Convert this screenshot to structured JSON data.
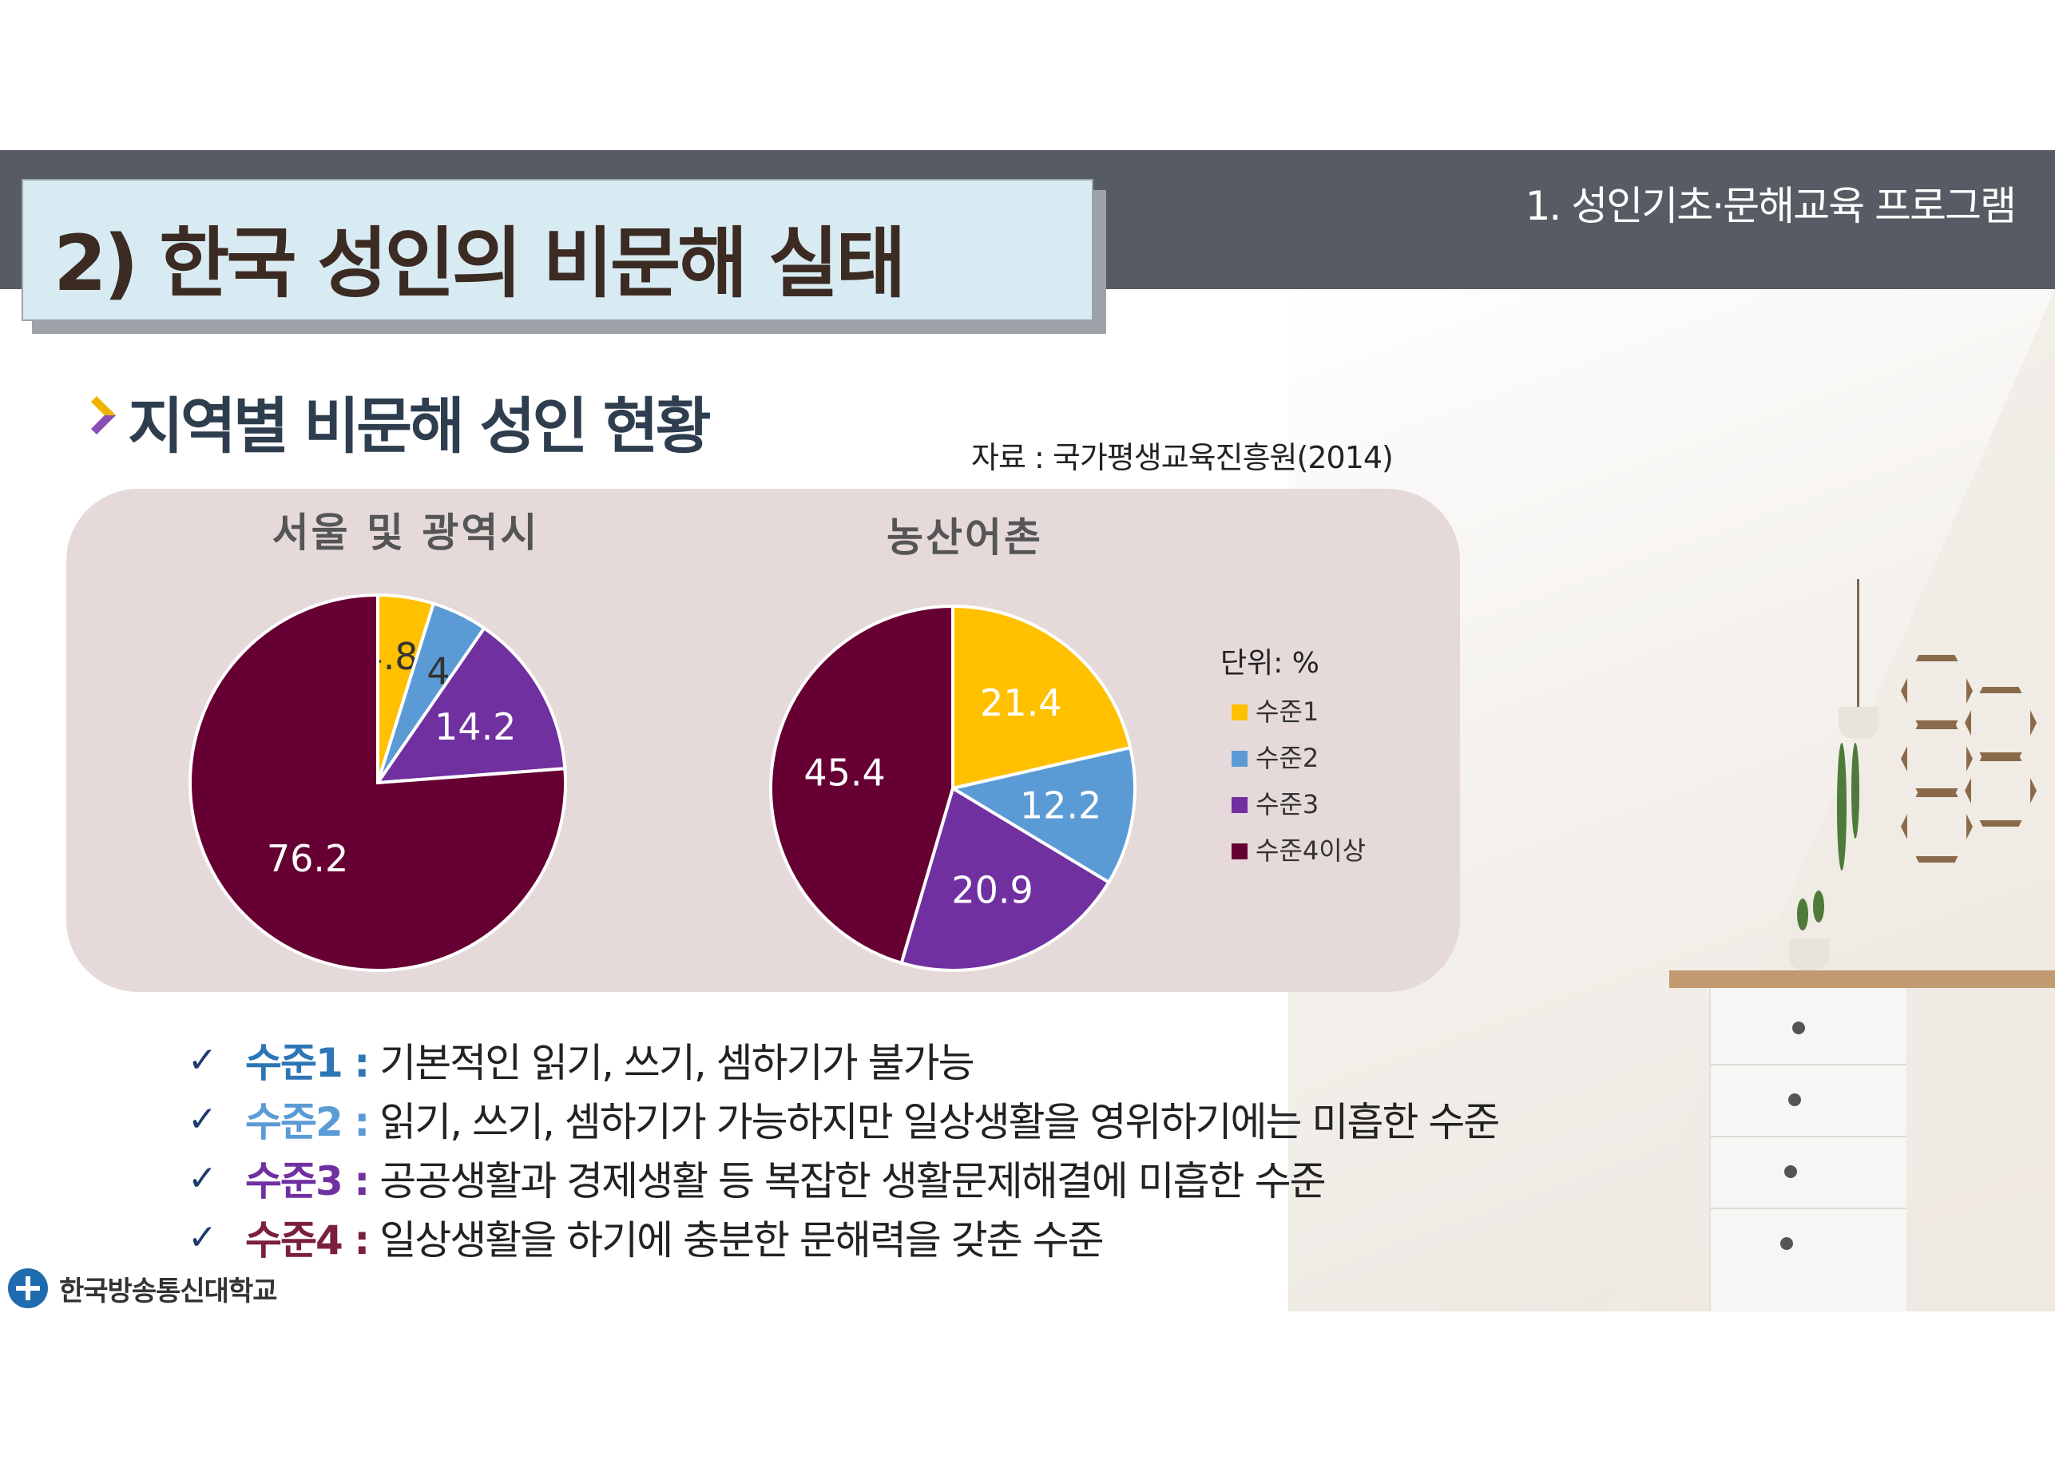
{
  "header": {
    "section_label": "1. 성인기초·문해교육 프로그램",
    "title": "2) 한국 성인의 비문해 실태"
  },
  "subheading": "지역별 비문해 성인 현황",
  "source": "자료 : 국가평생교육진흥원(2014)",
  "colors": {
    "level1": "#ffc000",
    "level2": "#5b9bd5",
    "level3": "#7030a0",
    "level4": "#660033"
  },
  "chart_data": [
    {
      "type": "pie",
      "title": "서울 및 광역시",
      "categories": [
        "수준1",
        "수준2",
        "수준3",
        "수준4이상"
      ],
      "values": [
        4.8,
        4.8,
        14.2,
        76.2
      ],
      "labels": [
        "4.8",
        "4.8",
        "14.2",
        "76.2"
      ]
    },
    {
      "type": "pie",
      "title": "농산어촌",
      "categories": [
        "수준1",
        "수준2",
        "수준3",
        "수준4이상"
      ],
      "values": [
        21.4,
        12.2,
        20.9,
        45.4
      ],
      "labels": [
        "21.4",
        "12.2",
        "20.9",
        "45.4"
      ]
    }
  ],
  "legend": {
    "unit": "단위: %",
    "entries": [
      "수준1",
      "수준2",
      "수준3",
      "수준4이상"
    ]
  },
  "levels": [
    {
      "name": "수준1 :",
      "desc": "기본적인 읽기, 쓰기, 셈하기가 불가능",
      "color": "#2e75b6"
    },
    {
      "name": "수준2 :",
      "desc": "읽기, 쓰기, 셈하기가 가능하지만 일상생활을 영위하기에는 미흡한 수준",
      "color": "#5b9bd5"
    },
    {
      "name": "수준3 :",
      "desc": "공공생활과 경제생활 등 복잡한 생활문제해결에 미흡한 수준",
      "color": "#7030a0"
    },
    {
      "name": "수준4 :",
      "desc": "일상생활을 하기에 충분한 문해력을 갖춘 수준",
      "color": "#7b1f3e"
    }
  ],
  "logo": {
    "text": "한국방송통신대학교"
  }
}
